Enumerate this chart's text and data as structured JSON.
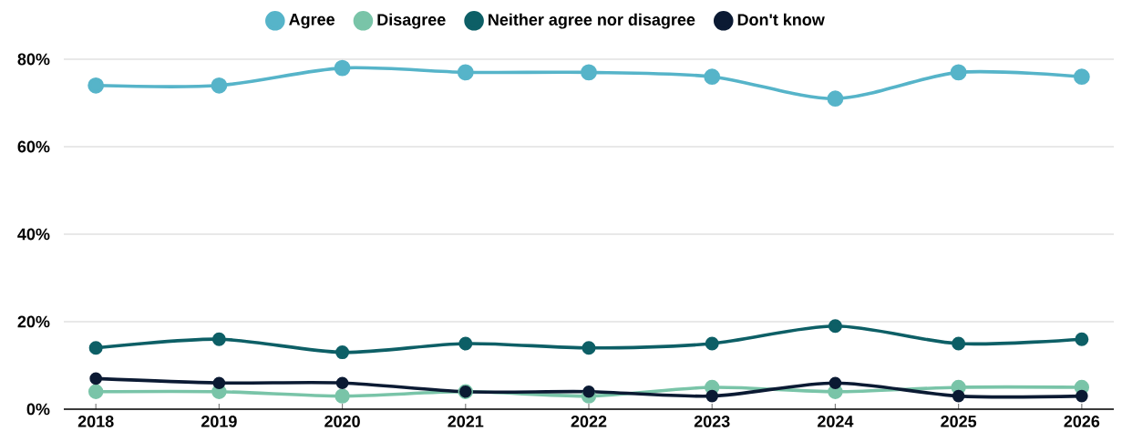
{
  "chart_data": {
    "type": "line",
    "categories": [
      "2018",
      "2019",
      "2020",
      "2021",
      "2022",
      "2023",
      "2024",
      "2025",
      "2026"
    ],
    "series": [
      {
        "name": "Agree",
        "color": "#56b4c9",
        "values": [
          74,
          74,
          78,
          77,
          77,
          76,
          71,
          77,
          76
        ]
      },
      {
        "name": "Disagree",
        "color": "#79c4a8",
        "values": [
          4,
          4,
          3,
          4,
          3,
          5,
          4,
          5,
          5
        ]
      },
      {
        "name": "Neither agree nor disagree",
        "color": "#0d5f66",
        "values": [
          14,
          16,
          13,
          15,
          14,
          15,
          19,
          15,
          16
        ]
      },
      {
        "name": "Don't know",
        "color": "#0b1a33",
        "values": [
          7,
          6,
          6,
          4,
          4,
          3,
          6,
          3,
          3
        ]
      }
    ],
    "ylim": [
      0,
      80
    ],
    "yticks": [
      {
        "value": 0,
        "label": "0%"
      },
      {
        "value": 20,
        "label": "20%"
      },
      {
        "value": 40,
        "label": "40%"
      },
      {
        "value": 60,
        "label": "60%"
      },
      {
        "value": 80,
        "label": "80%"
      }
    ],
    "grid": "y",
    "legend": "top",
    "marker": "circle",
    "line_style": "solid"
  }
}
